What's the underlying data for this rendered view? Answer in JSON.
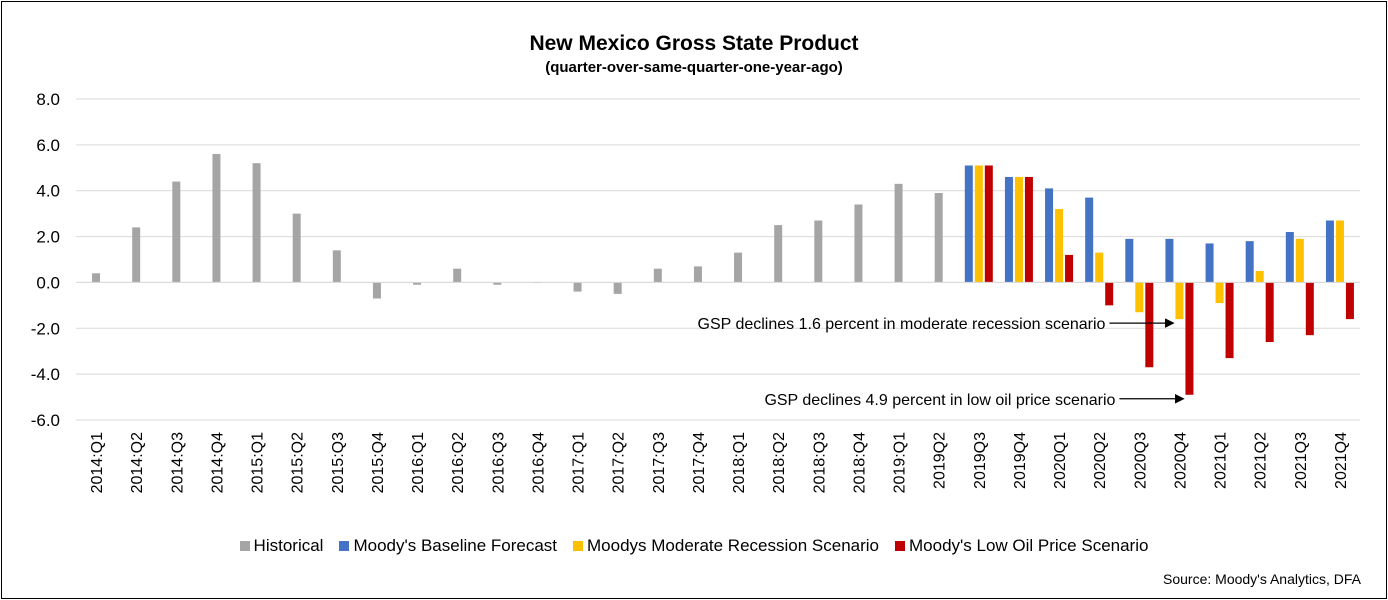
{
  "chart_data": {
    "type": "bar",
    "title": "New Mexico Gross State Product",
    "subtitle": "(quarter-over-same-quarter-one-year-ago)",
    "ylim": [
      -6,
      8
    ],
    "yticks": [
      "8.0",
      "6.0",
      "4.0",
      "2.0",
      "0.0",
      "-2.0",
      "-4.0",
      "-6.0"
    ],
    "ytick_values": [
      8,
      6,
      4,
      2,
      0,
      -2,
      -4,
      -6
    ],
    "grid": true,
    "legend_position": "bottom",
    "categories": [
      "2014:Q1",
      "2014:Q2",
      "2014:Q3",
      "2014:Q4",
      "2015:Q1",
      "2015:Q2",
      "2015:Q3",
      "2015:Q4",
      "2016:Q1",
      "2016:Q2",
      "2016:Q3",
      "2016:Q4",
      "2017:Q1",
      "2017:Q2",
      "2017:Q3",
      "2017:Q4",
      "2018:Q1",
      "2018:Q2",
      "2018:Q3",
      "2018:Q4",
      "2019:Q1",
      "2019Q2",
      "2019Q3",
      "2019Q4",
      "2020Q1",
      "2020Q2",
      "2020Q3",
      "2020Q4",
      "2021Q1",
      "2021Q2",
      "2021Q3",
      "2021Q4"
    ],
    "series": [
      {
        "name": "Historical",
        "color": "#A5A5A5",
        "values": [
          0.4,
          2.4,
          4.4,
          5.6,
          5.2,
          3.0,
          1.4,
          -0.7,
          -0.1,
          0.6,
          -0.1,
          0.0,
          -0.4,
          -0.5,
          0.6,
          0.7,
          1.3,
          2.5,
          2.7,
          3.4,
          4.3,
          3.9,
          null,
          null,
          null,
          null,
          null,
          null,
          null,
          null,
          null,
          null
        ]
      },
      {
        "name": "Moody's Baseline Forecast",
        "color": "#4472C4",
        "values": [
          null,
          null,
          null,
          null,
          null,
          null,
          null,
          null,
          null,
          null,
          null,
          null,
          null,
          null,
          null,
          null,
          null,
          null,
          null,
          null,
          null,
          null,
          5.1,
          4.6,
          4.1,
          3.7,
          1.9,
          1.9,
          1.7,
          1.8,
          2.2,
          2.7
        ]
      },
      {
        "name": "Moodys Moderate Recession Scenario",
        "color": "#FFC000",
        "values": [
          null,
          null,
          null,
          null,
          null,
          null,
          null,
          null,
          null,
          null,
          null,
          null,
          null,
          null,
          null,
          null,
          null,
          null,
          null,
          null,
          null,
          null,
          5.1,
          4.6,
          3.2,
          1.3,
          -1.3,
          -1.6,
          -0.9,
          0.5,
          1.9,
          2.7
        ]
      },
      {
        "name": "Moody's Low Oil Price Scenario",
        "color": "#C00000",
        "values": [
          null,
          null,
          null,
          null,
          null,
          null,
          null,
          null,
          null,
          null,
          null,
          null,
          null,
          null,
          null,
          null,
          null,
          null,
          null,
          null,
          null,
          null,
          5.1,
          4.6,
          1.2,
          -1.0,
          -3.7,
          -4.9,
          -3.3,
          -2.6,
          -2.3,
          -1.6
        ]
      }
    ],
    "annotations": [
      {
        "text": "GSP declines 1.6 percent in moderate recession scenario",
        "category": "2020Q4",
        "series": "Moodys Moderate Recession Scenario",
        "value": -1.6
      },
      {
        "text": "GSP declines 4.9 percent in low oil price scenario",
        "category": "2020Q4",
        "series": "Moody's Low Oil Price Scenario",
        "value": -4.9
      }
    ]
  },
  "source": "Source: Moody's Analytics, DFA"
}
